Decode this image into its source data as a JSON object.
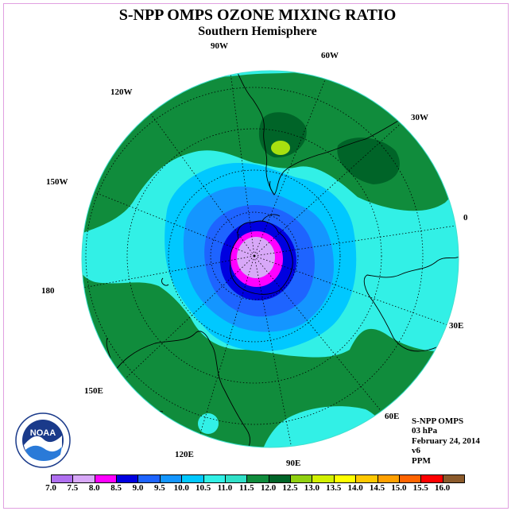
{
  "header": {
    "title": "S-NPP OMPS OZONE MIXING RATIO",
    "subtitle": "Southern Hemisphere"
  },
  "longitude_labels": [
    "90W",
    "60W",
    "120W",
    "30W",
    "150W",
    "0",
    "180",
    "30E",
    "150E",
    "60E",
    "120E",
    "90E"
  ],
  "info": {
    "instrument": "S-NPP OMPS",
    "level": "03 hPa",
    "date": "February 24, 2014",
    "version": "v6",
    "units": "PPM"
  },
  "logo": {
    "text": "NOAA",
    "icon": "noaa-logo"
  },
  "colorbar": {
    "labels": [
      "7.0",
      "7.5",
      "8.0",
      "8.5",
      "9.0",
      "9.5",
      "10.0",
      "10.5",
      "11.0",
      "11.5",
      "12.0",
      "12.5",
      "13.0",
      "13.5",
      "14.0",
      "14.5",
      "15.0",
      "15.5",
      "16.0"
    ],
    "colors": [
      "#b070f0",
      "#d8a8f8",
      "#ff00ff",
      "#0000e0",
      "#1e64ff",
      "#1496ff",
      "#00c8ff",
      "#32f0e6",
      "#30e0c8",
      "#108c3c",
      "#006428",
      "#90d010",
      "#d2f000",
      "#ffff00",
      "#ffc800",
      "#ffa000",
      "#ff6400",
      "#ff0000",
      "#8b5a2b"
    ]
  }
}
